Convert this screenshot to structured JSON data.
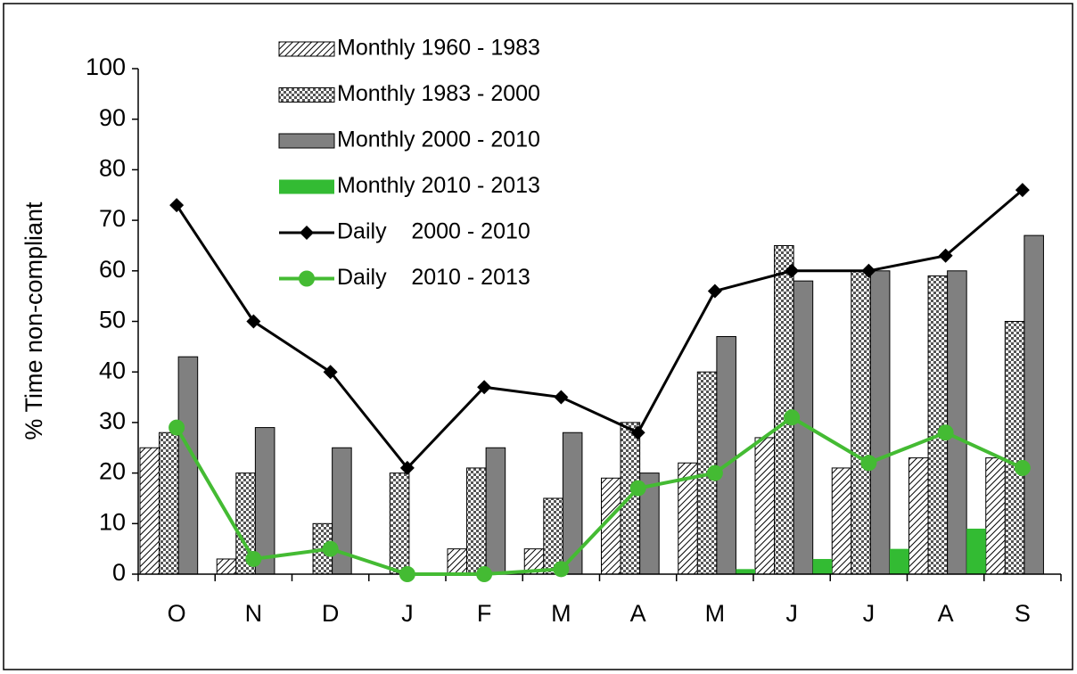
{
  "chart_data": {
    "type": "bar",
    "y_label": "% Time non-compliant",
    "categories": [
      "O",
      "N",
      "D",
      "J",
      "F",
      "M",
      "A",
      "M",
      "J",
      "J",
      "A",
      "S"
    ],
    "ylim": [
      0,
      100
    ],
    "yticks": [
      0,
      10,
      20,
      30,
      40,
      50,
      60,
      70,
      80,
      90,
      100
    ],
    "legend": "top",
    "series": [
      {
        "name": "Monthly 1960 - 1983",
        "type": "bar",
        "pattern": "hatch",
        "color": "#000000",
        "values": [
          25,
          3,
          0,
          0,
          5,
          5,
          19,
          22,
          27,
          21,
          23,
          23
        ]
      },
      {
        "name": "Monthly 1983 - 2000",
        "type": "bar",
        "pattern": "checker",
        "color": "#555555",
        "values": [
          28,
          20,
          10,
          20,
          21,
          15,
          30,
          40,
          65,
          60,
          59,
          50
        ]
      },
      {
        "name": "Monthly 2000 - 2010",
        "type": "bar",
        "pattern": "solid",
        "color": "#808080",
        "values": [
          43,
          29,
          25,
          0,
          25,
          28,
          20,
          47,
          58,
          60,
          60,
          67
        ]
      },
      {
        "name": "Monthly 2010 - 2013",
        "type": "bar",
        "pattern": "solid",
        "color": "#33bb33",
        "values": [
          0,
          0,
          0,
          0,
          0,
          0,
          0,
          1,
          3,
          5,
          9,
          0
        ]
      },
      {
        "name": "Daily    2000 - 2010",
        "type": "line",
        "marker": "diamond",
        "color": "#000000",
        "values": [
          73,
          50,
          40,
          21,
          37,
          35,
          28,
          56,
          60,
          60,
          63,
          76
        ]
      },
      {
        "name": "Daily    2010 - 2013",
        "type": "line",
        "marker": "circle",
        "color": "#44bb33",
        "values": [
          29,
          3,
          5,
          0,
          0,
          1,
          17,
          20,
          31,
          22,
          28,
          21
        ]
      }
    ]
  }
}
